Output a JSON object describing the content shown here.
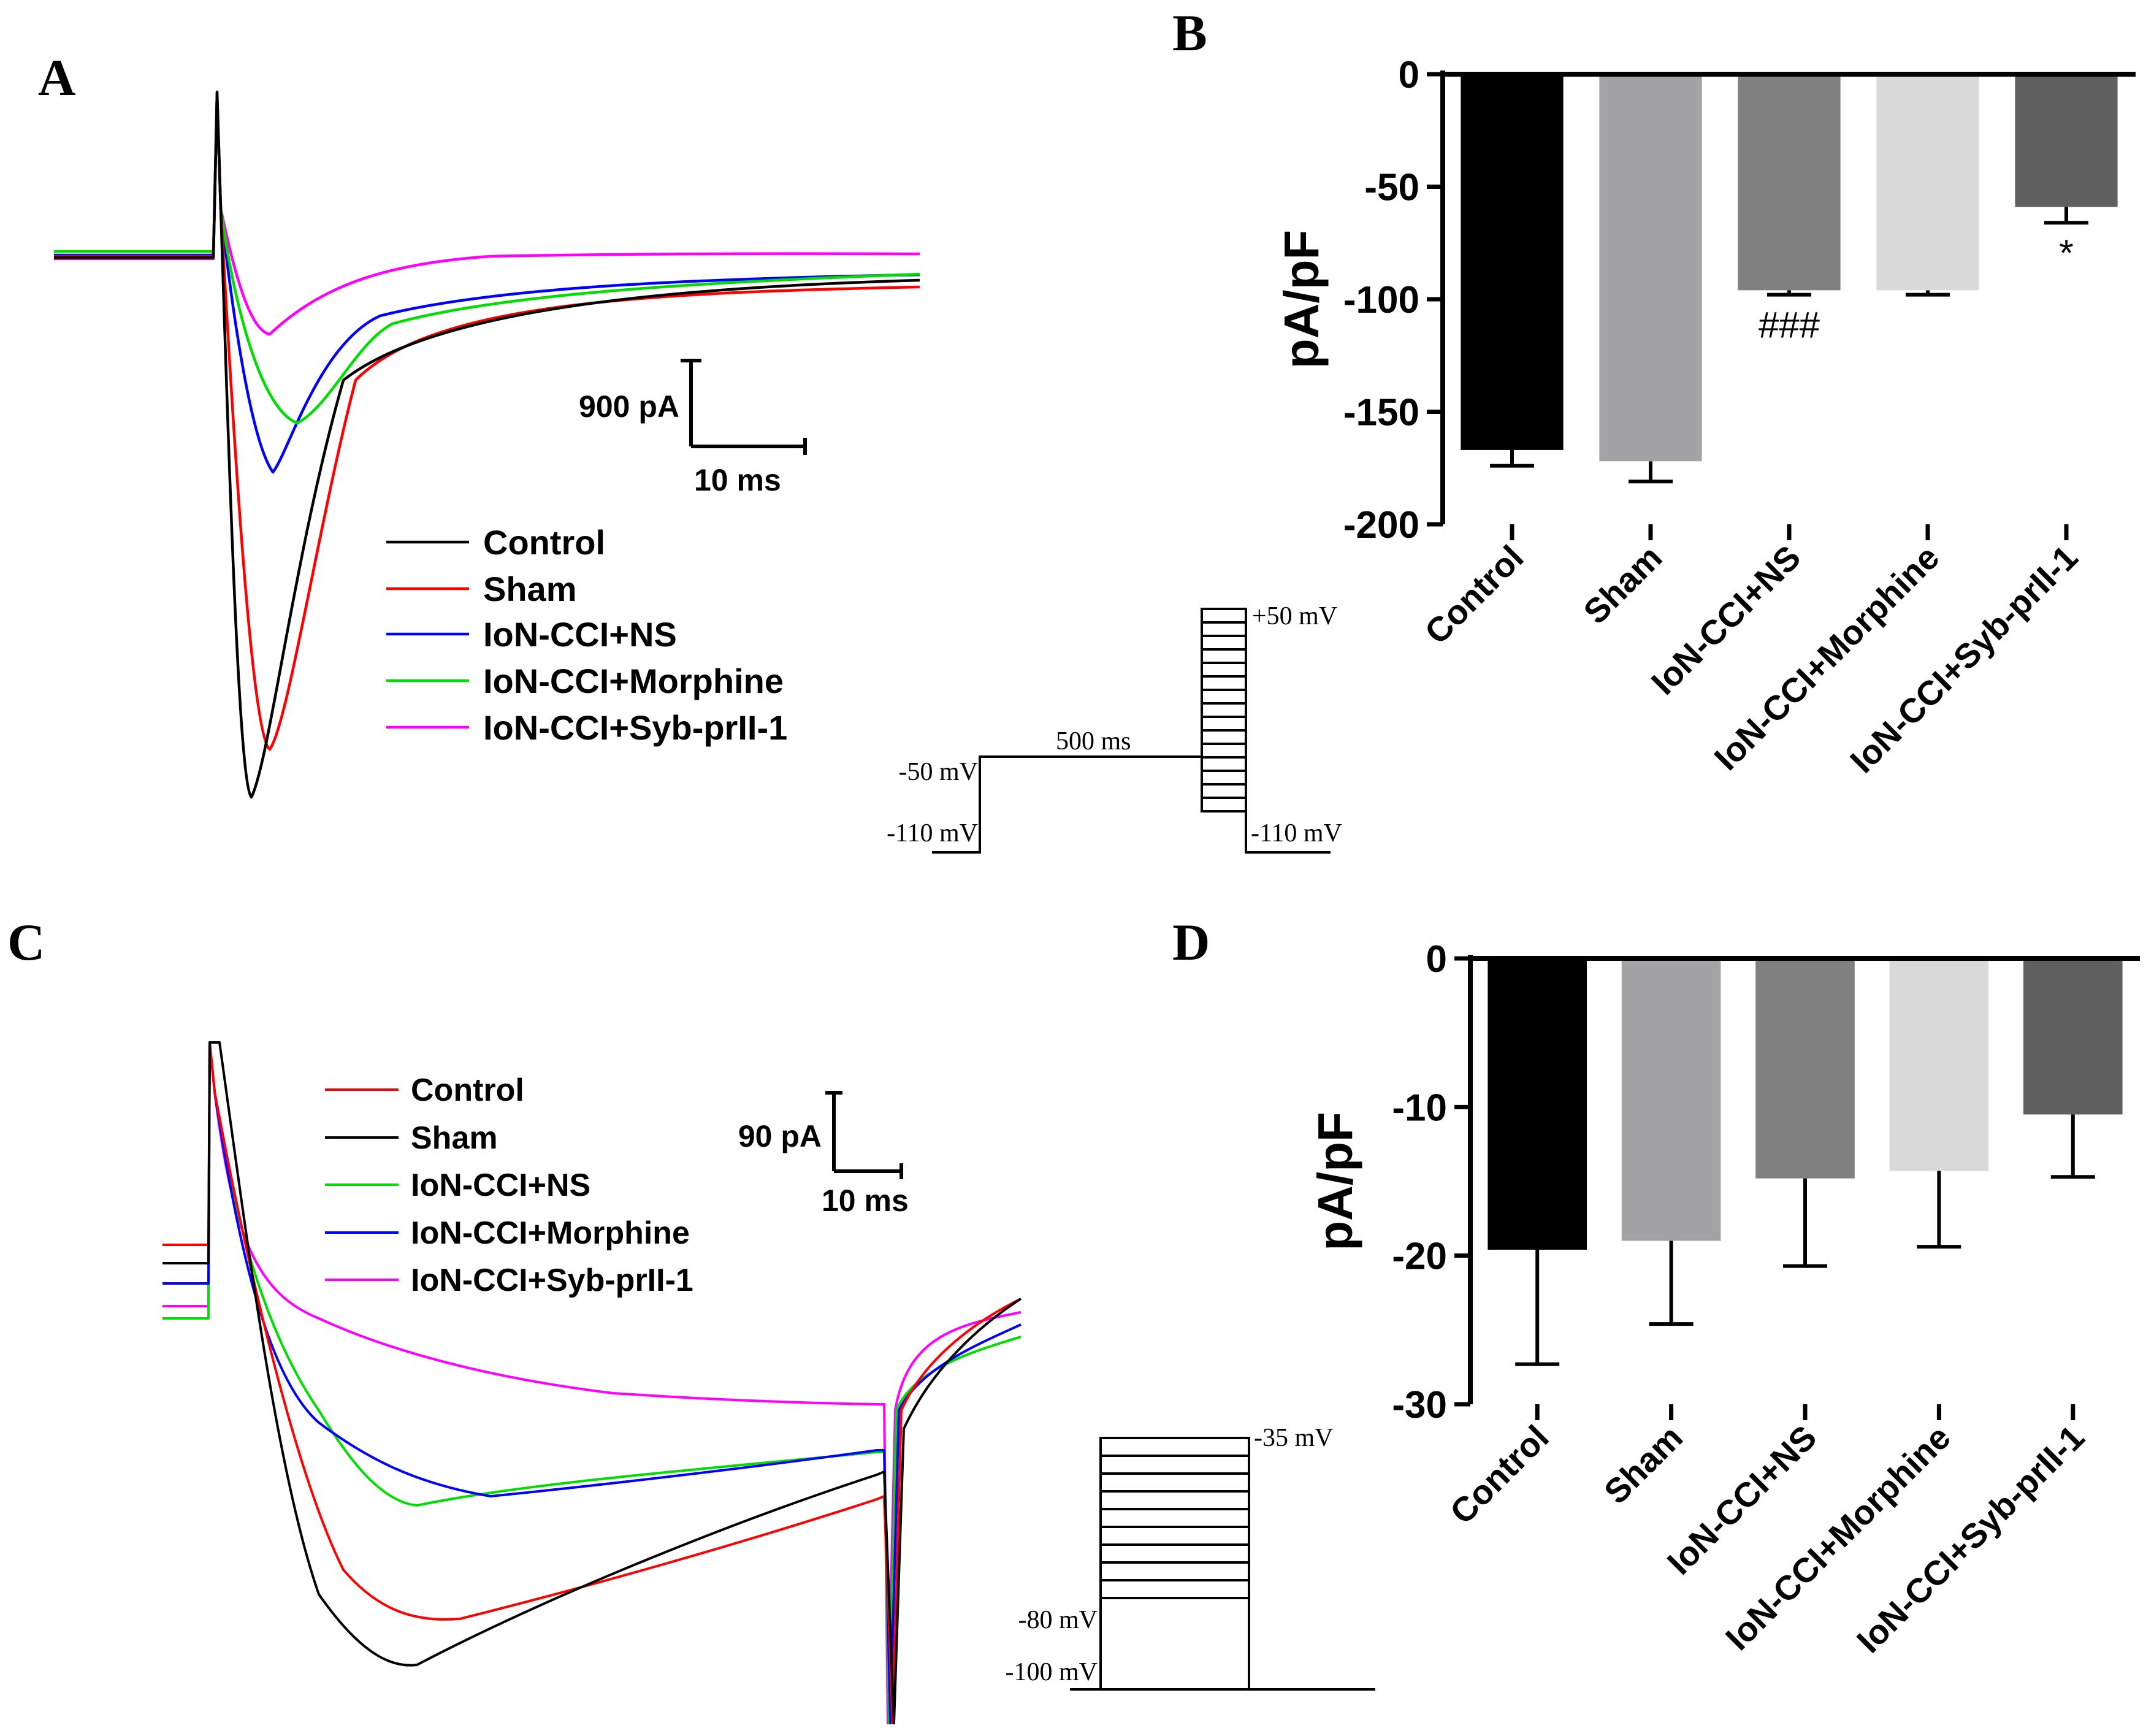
{
  "panels": {
    "A": {
      "letter": "A"
    },
    "B": {
      "letter": "B"
    },
    "C": {
      "letter": "C"
    },
    "D": {
      "letter": "D"
    }
  },
  "panel_A": {
    "legend": [
      {
        "label": "Control",
        "color": "#000000"
      },
      {
        "label": "Sham",
        "color": "#ff0000"
      },
      {
        "label": "IoN-CCI+NS",
        "color": "#0000ff"
      },
      {
        "label": "IoN-CCI+Morphine",
        "color": "#00dd00"
      },
      {
        "label": "IoN-CCI+Syb-prII-1",
        "color": "#ff00ff"
      }
    ],
    "scale_bar": {
      "y_label": "900 pA",
      "x_label": "10 ms"
    },
    "protocol": {
      "hold": "-110 mV",
      "pre": "-50 mV",
      "duration": "500 ms",
      "top": "+50 mV",
      "end": "-110 mV"
    }
  },
  "panel_C": {
    "legend": [
      {
        "label": "Control",
        "color": "#ff0000"
      },
      {
        "label": "Sham",
        "color": "#000000"
      },
      {
        "label": "IoN-CCI+NS",
        "color": "#00dd00"
      },
      {
        "label": "IoN-CCI+Morphine",
        "color": "#0000ff"
      },
      {
        "label": "IoN-CCI+Syb-prII-1",
        "color": "#ff00ff"
      }
    ],
    "scale_bar": {
      "y_label": "90 pA",
      "x_label": "10 ms"
    },
    "protocol": {
      "top": "-35 mV",
      "step": "-80 mV",
      "hold": "-100 mV"
    }
  },
  "chart_data": [
    {
      "panel": "B",
      "type": "bar",
      "title": "",
      "xlabel": "",
      "ylabel": "pA/pF",
      "ylim": [
        -200,
        0
      ],
      "yticks": [
        "0",
        "-50",
        "-100",
        "-150",
        "-200"
      ],
      "categories": [
        "Control",
        "Sham",
        "IoN-CCI+NS",
        "IoN-CCI+Morphine",
        "IoN-CCI+Syb-prII-1"
      ],
      "values": [
        -167,
        -172,
        -96,
        -96,
        -59
      ],
      "errors": [
        7,
        9,
        2,
        2,
        7
      ],
      "bar_colors": [
        "#000000",
        "#a3a3a6",
        "#808080",
        "#d9d9d9",
        "#5f5f5f"
      ],
      "annotations": [
        "",
        "",
        "###",
        "",
        "*"
      ]
    },
    {
      "panel": "D",
      "type": "bar",
      "title": "",
      "xlabel": "",
      "ylabel": "pA/pF",
      "ylim": [
        -30,
        0
      ],
      "yticks": [
        "0",
        "-10",
        "-20",
        "-30"
      ],
      "categories": [
        "Control",
        "Sham",
        "IoN-CCI+NS",
        "IoN-CCI+Morphine",
        "IoN-CCI+Syb-prII-1"
      ],
      "values": [
        -19.6,
        -19.0,
        -14.8,
        -14.3,
        -10.5
      ],
      "errors": [
        7.7,
        5.6,
        5.9,
        5.1,
        4.2
      ],
      "bar_colors": [
        "#000000",
        "#a3a3a6",
        "#808080",
        "#d9d9d9",
        "#5f5f5f"
      ],
      "annotations": [
        "",
        "",
        "",
        "",
        ""
      ]
    }
  ]
}
